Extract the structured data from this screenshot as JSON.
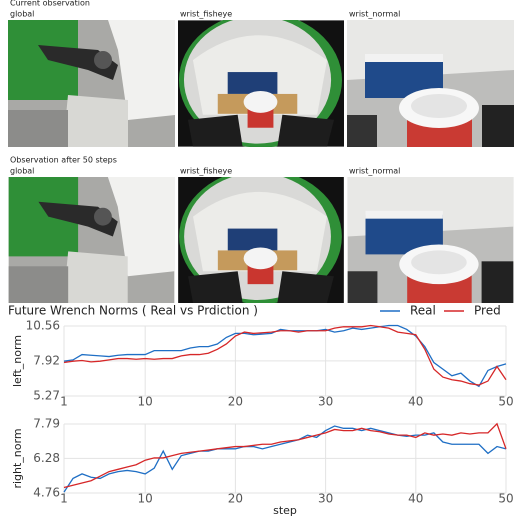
{
  "panels": [
    {
      "title": "Current observation",
      "views": [
        "global",
        "wrist_fisheye",
        "wrist_normal"
      ]
    },
    {
      "title": "Observation after 50 steps",
      "views": [
        "global",
        "wrist_fisheye",
        "wrist_normal"
      ]
    }
  ],
  "chart_data": [
    {
      "type": "line",
      "title": "Future Wrench Norms ( Real vs Prdiction )",
      "ylabel": "left_norm",
      "x": [
        1,
        2,
        3,
        4,
        5,
        6,
        7,
        8,
        9,
        10,
        11,
        12,
        13,
        14,
        15,
        16,
        17,
        18,
        19,
        20,
        21,
        22,
        23,
        24,
        25,
        26,
        27,
        28,
        29,
        30,
        31,
        32,
        33,
        34,
        35,
        36,
        37,
        38,
        39,
        40,
        41,
        42,
        43,
        44,
        45,
        46,
        47,
        48,
        49,
        50
      ],
      "xlim": [
        1,
        50
      ],
      "xticks": [
        1,
        10,
        20,
        30,
        40,
        50
      ],
      "ylim": [
        5.27,
        10.56
      ],
      "yticks": [
        5.27,
        7.92,
        10.56
      ],
      "grid": true,
      "legend": "upper right",
      "series": [
        {
          "name": "Real",
          "color": "#1f6fc5",
          "values": [
            7.9,
            8.0,
            8.4,
            8.35,
            8.3,
            8.25,
            8.35,
            8.4,
            8.4,
            8.4,
            8.7,
            8.7,
            8.7,
            8.7,
            8.9,
            9.0,
            9.0,
            9.2,
            9.7,
            10.0,
            10.0,
            9.9,
            9.95,
            10.0,
            10.3,
            10.2,
            10.2,
            10.2,
            10.2,
            10.3,
            10.1,
            10.2,
            10.4,
            10.3,
            10.4,
            10.5,
            10.6,
            10.6,
            10.3,
            9.8,
            9.0,
            7.8,
            7.3,
            6.8,
            7.0,
            6.4,
            6.0,
            7.2,
            7.5,
            7.7
          ]
        },
        {
          "name": "Pred",
          "color": "#d62728",
          "values": [
            7.8,
            7.9,
            7.95,
            7.85,
            7.9,
            8.0,
            8.1,
            8.1,
            8.05,
            8.1,
            8.05,
            8.1,
            8.1,
            8.3,
            8.4,
            8.4,
            8.5,
            8.8,
            9.2,
            9.8,
            10.1,
            10.0,
            10.05,
            10.1,
            10.2,
            10.2,
            10.1,
            10.2,
            10.2,
            10.2,
            10.4,
            10.5,
            10.5,
            10.5,
            10.6,
            10.5,
            10.4,
            10.1,
            10.0,
            9.9,
            8.8,
            7.3,
            6.7,
            6.5,
            6.4,
            6.2,
            6.1,
            6.4,
            7.5,
            6.5
          ]
        }
      ]
    },
    {
      "type": "line",
      "ylabel": "right_norm",
      "xlabel": "step",
      "x": [
        1,
        2,
        3,
        4,
        5,
        6,
        7,
        8,
        9,
        10,
        11,
        12,
        13,
        14,
        15,
        16,
        17,
        18,
        19,
        20,
        21,
        22,
        23,
        24,
        25,
        26,
        27,
        28,
        29,
        30,
        31,
        32,
        33,
        34,
        35,
        36,
        37,
        38,
        39,
        40,
        41,
        42,
        43,
        44,
        45,
        46,
        47,
        48,
        49,
        50
      ],
      "xlim": [
        1,
        50
      ],
      "xticks": [
        1,
        10,
        20,
        30,
        40,
        50
      ],
      "ylim": [
        4.76,
        7.79
      ],
      "yticks": [
        4.76,
        6.28,
        7.79
      ],
      "grid": true,
      "series": [
        {
          "color": "#1f6fc5",
          "values": [
            4.8,
            5.4,
            5.6,
            5.45,
            5.4,
            5.6,
            5.7,
            5.75,
            5.7,
            5.6,
            5.85,
            6.6,
            5.8,
            6.4,
            6.5,
            6.6,
            6.6,
            6.7,
            6.7,
            6.7,
            6.8,
            6.8,
            6.7,
            6.8,
            6.9,
            7.0,
            7.1,
            7.3,
            7.2,
            7.5,
            7.7,
            7.6,
            7.6,
            7.5,
            7.6,
            7.5,
            7.4,
            7.3,
            7.25,
            7.3,
            7.3,
            7.4,
            7.0,
            6.9,
            6.9,
            6.9,
            6.9,
            6.5,
            6.8,
            6.7
          ]
        },
        {
          "color": "#d62728",
          "values": [
            5.0,
            5.1,
            5.2,
            5.3,
            5.5,
            5.7,
            5.8,
            5.9,
            6.0,
            6.2,
            6.3,
            6.3,
            6.4,
            6.5,
            6.55,
            6.6,
            6.65,
            6.7,
            6.75,
            6.8,
            6.8,
            6.85,
            6.9,
            6.9,
            7.0,
            7.05,
            7.1,
            7.2,
            7.3,
            7.4,
            7.55,
            7.5,
            7.5,
            7.6,
            7.5,
            7.45,
            7.35,
            7.3,
            7.3,
            7.2,
            7.4,
            7.3,
            7.35,
            7.3,
            7.4,
            7.35,
            7.4,
            7.4,
            7.8,
            6.7
          ]
        }
      ]
    }
  ]
}
